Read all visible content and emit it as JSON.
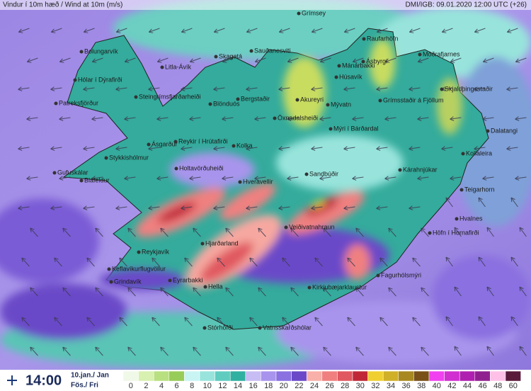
{
  "header": {
    "title": "Vindur í 10m hæð / Wind at 10m (m/s)",
    "run": "DMI/IGB: 09.01.2020 12:00 UTC (+26)"
  },
  "footer": {
    "time": "14:00",
    "date": "10.jan./ Jan",
    "day": "Fös./ Fri"
  },
  "places": [
    "Grímsey",
    "Raufarhöfn",
    "Bolungarvík",
    "Litla-Ávík",
    "Skagatá",
    "Sauðanesviti",
    "Mánárbakki",
    "Möðrafjarnes",
    "Ásbyrgi",
    "Húsavík",
    "Hólar í Dýrafirði",
    "Steingrímsfjarðarheiði",
    "Patreksfjörður",
    "Blönduós",
    "Bergstaðir",
    "Akureyri",
    "Mývatn",
    "Grímsstaðir á Fjöllum",
    "Skjaldþingsstaðir",
    "Öxnadalsheiði",
    "Dalatangi",
    "Mýri í Bárðardal",
    "Ásgarður",
    "Reykir í Hrútafirði",
    "Kolka",
    "Stykkishólmur",
    "Kollaleira",
    "Holtavörðuheiði",
    "Kárahnjúkar",
    "Gufuskálar",
    "Bláfeldur",
    "Sandbúðir",
    "Hveravellir",
    "Teigarhorn",
    "Hvalnes",
    "Veiðivatnahraun",
    "Höfn í Hornafirði",
    "Reykjavík",
    "Hjarðarland",
    "Keflavíkurflugvöllur",
    "Fagurhólsmýri",
    "Eyrarbakki",
    "Hella",
    "Grindavík",
    "Kirkjubæjarklaustur",
    "Stórhöfði",
    "Vatnsskarðshólar"
  ],
  "legend": {
    "ticks": [
      0,
      2,
      4,
      6,
      8,
      10,
      12,
      14,
      16,
      18,
      20,
      22,
      24,
      26,
      28,
      30,
      32,
      34,
      36,
      38,
      40,
      42,
      44,
      46,
      48,
      60
    ],
    "colors": [
      "#f0f8e8",
      "#d8f0b0",
      "#b8e080",
      "#98cc58",
      "#c8f4f4",
      "#98e4dc",
      "#60ccc0",
      "#30b0a0",
      "#c8bcf4",
      "#a894ec",
      "#8a70e0",
      "#6a48c8",
      "#f8b0a8",
      "#f08080",
      "#e05860",
      "#c02838",
      "#f0d030",
      "#d0b028",
      "#a88820",
      "#785018",
      "#f040f0",
      "#d030d0",
      "#b020b0",
      "#902090",
      "#ffc0e8",
      "#5a1a3a"
    ]
  }
}
